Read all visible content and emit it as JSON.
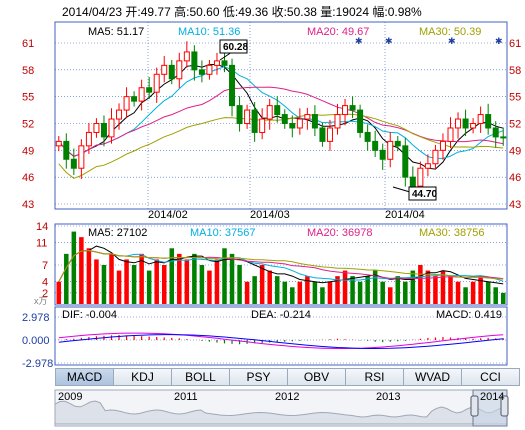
{
  "header": {
    "date": "2014/04/23",
    "open_label": "开:",
    "open": "49.77",
    "high_label": "高:",
    "high": "50.60",
    "low_label": "低:",
    "low": "49.36",
    "close_label": "收:",
    "close": "50.38",
    "vol_label": "量:",
    "vol": "19024",
    "chg_label": "幅:",
    "chg": "0.98%"
  },
  "price_panel": {
    "ma5": "MA5: 51.17",
    "ma10": "MA10: 51.36",
    "ma20": "MA20: 49.67",
    "ma30": "MA30: 50.39",
    "y_ticks": [
      "61",
      "58",
      "55",
      "52",
      "49",
      "46",
      "43"
    ],
    "high_marker": "60.28",
    "low_marker": "44.70",
    "date_ticks": [
      "2014/02",
      "2014/03",
      "2014/04"
    ]
  },
  "volume_panel": {
    "ma5": "MA5: 27102",
    "ma10": "MA10: 37567",
    "ma20": "MA20: 36978",
    "ma30": "MA30: 38756",
    "y_ticks": [
      "14",
      "11",
      "7",
      "4",
      "2"
    ],
    "unit": "x万"
  },
  "macd_panel": {
    "dif": "DIF: -0.004",
    "dea": "DEA: -0.214",
    "macd": "MACD: 0.419",
    "y_ticks": [
      "2.978",
      "0.000",
      "-2.978"
    ]
  },
  "tabs": [
    "MACD",
    "KDJ",
    "BOLL",
    "PSY",
    "OBV",
    "RSI",
    "WVAD",
    "CCI"
  ],
  "timeline": {
    "years": [
      "2009",
      "2011",
      "2012",
      "2013",
      "2014"
    ]
  },
  "colors": {
    "up": "#ff0000",
    "down": "#008000",
    "ma5": "#000000",
    "ma10": "#00b0e0",
    "ma20": "#e0208a",
    "ma30": "#a0a000",
    "grid": "#4060c0",
    "dif": "#e000e0",
    "dea": "#0000ff"
  },
  "chart_data": [
    {
      "type": "candlestick",
      "title": "",
      "ylim": [
        43,
        61
      ],
      "x_labels": [
        "2014/02",
        "2014/03",
        "2014/04"
      ],
      "close": [
        50,
        48,
        47,
        49.5,
        51,
        52,
        50.5,
        52.5,
        53.5,
        55,
        54.5,
        56,
        55.5,
        57.5,
        58.5,
        57,
        59,
        60,
        58,
        57.5,
        58.5,
        59,
        58.5,
        54,
        52,
        53.5,
        51,
        52.5,
        54,
        53,
        52,
        51.5,
        52.5,
        53,
        51.5,
        50,
        51.5,
        53,
        54,
        53.5,
        51,
        50,
        49,
        48,
        50,
        49.5,
        46,
        45,
        47,
        47.5,
        49,
        50,
        51.5,
        52.5,
        51.5,
        52,
        53,
        51.5,
        50.5,
        50.4
      ],
      "series": [
        {
          "name": "MA5",
          "value": 51.17
        },
        {
          "name": "MA10",
          "value": 51.36
        },
        {
          "name": "MA20",
          "value": 49.67
        },
        {
          "name": "MA30",
          "value": 50.39
        }
      ],
      "high_marker": 60.28,
      "low_marker": 44.7
    },
    {
      "type": "bar",
      "title": "",
      "unit": "x万",
      "ylim": [
        0,
        14
      ],
      "values": [
        4,
        9,
        13,
        12,
        10,
        8,
        7,
        9,
        6,
        8,
        7,
        9,
        6,
        8,
        7,
        10,
        9,
        8,
        9,
        7,
        6,
        8,
        10,
        9,
        7,
        4,
        5,
        7,
        6,
        5,
        4,
        3,
        4,
        5,
        4,
        3,
        4,
        5,
        6,
        5,
        4,
        5,
        6,
        4,
        3,
        5,
        4,
        6,
        7,
        6,
        5,
        6,
        5,
        4,
        3,
        4,
        5,
        4,
        3,
        2
      ],
      "series": [
        {
          "name": "MA5",
          "value": 27102
        },
        {
          "name": "MA10",
          "value": 37567
        },
        {
          "name": "MA20",
          "value": 36978
        },
        {
          "name": "MA30",
          "value": 38756
        }
      ]
    },
    {
      "type": "bar",
      "title": "",
      "ylim": [
        -2.978,
        2.978
      ],
      "values": [
        0.1,
        0.2,
        0.3,
        0.5,
        0.7,
        0.9,
        1.0,
        1.1,
        1.2,
        1.1,
        1.0,
        0.9,
        0.8,
        0.7,
        0.6,
        0.5,
        0.4,
        0.2,
        0.0,
        -0.2,
        -0.4,
        -0.6,
        -0.8,
        -0.9,
        -1.0,
        -0.9,
        -0.8,
        -0.7,
        -0.6,
        -0.5,
        -0.4,
        -0.3,
        -0.2,
        -0.1,
        0.0,
        0.1,
        0.2,
        0.3,
        0.2,
        0.1,
        -0.1,
        -0.2,
        -0.4,
        -0.5,
        -0.4,
        -0.3,
        -0.2,
        0.1,
        0.3,
        0.5,
        0.6,
        0.7,
        0.6,
        0.5,
        0.4,
        0.3,
        0.4,
        0.5,
        0.4,
        0.419
      ],
      "series": [
        {
          "name": "DIF",
          "value": -0.004
        },
        {
          "name": "DEA",
          "value": -0.214
        },
        {
          "name": "MACD",
          "value": 0.419
        }
      ]
    }
  ]
}
